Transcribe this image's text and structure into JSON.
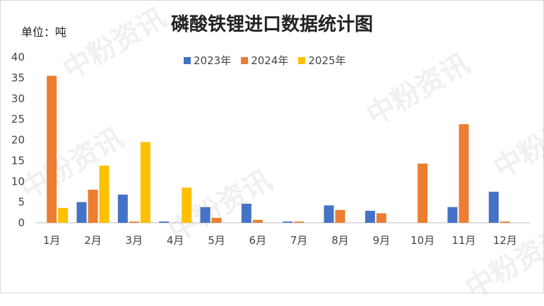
{
  "header": {
    "title": "磷酸铁锂进口数据统计图",
    "unit": "单位：吨"
  },
  "watermark": "中粉资讯",
  "colors": {
    "2023年": "#4472c4",
    "2024年": "#ed7d31",
    "2025年": "#ffc000"
  },
  "chart_data": {
    "type": "bar",
    "title": "磷酸铁锂进口数据统计图",
    "ylabel": "单位：吨",
    "ylim": [
      0,
      40
    ],
    "yticks": [
      0,
      5,
      10,
      15,
      20,
      25,
      30,
      35,
      40
    ],
    "grid": false,
    "legend": "top-center",
    "categories": [
      "1月",
      "2月",
      "3月",
      "4月",
      "5月",
      "6月",
      "7月",
      "8月",
      "9月",
      "10月",
      "11月",
      "12月"
    ],
    "series": [
      {
        "name": "2023年",
        "color": "#4472c4",
        "values": [
          0,
          5.0,
          6.8,
          0.3,
          3.8,
          4.6,
          0.3,
          4.2,
          2.9,
          0,
          3.8,
          7.5
        ]
      },
      {
        "name": "2024年",
        "color": "#ed7d31",
        "values": [
          35.5,
          8.0,
          0.3,
          0,
          1.2,
          0.7,
          0.3,
          3.1,
          2.3,
          14.3,
          23.8,
          0.3
        ]
      },
      {
        "name": "2025年",
        "color": "#ffc000",
        "values": [
          3.6,
          13.8,
          19.5,
          8.5,
          0,
          0,
          0,
          0,
          0,
          0,
          0,
          0
        ]
      }
    ]
  }
}
